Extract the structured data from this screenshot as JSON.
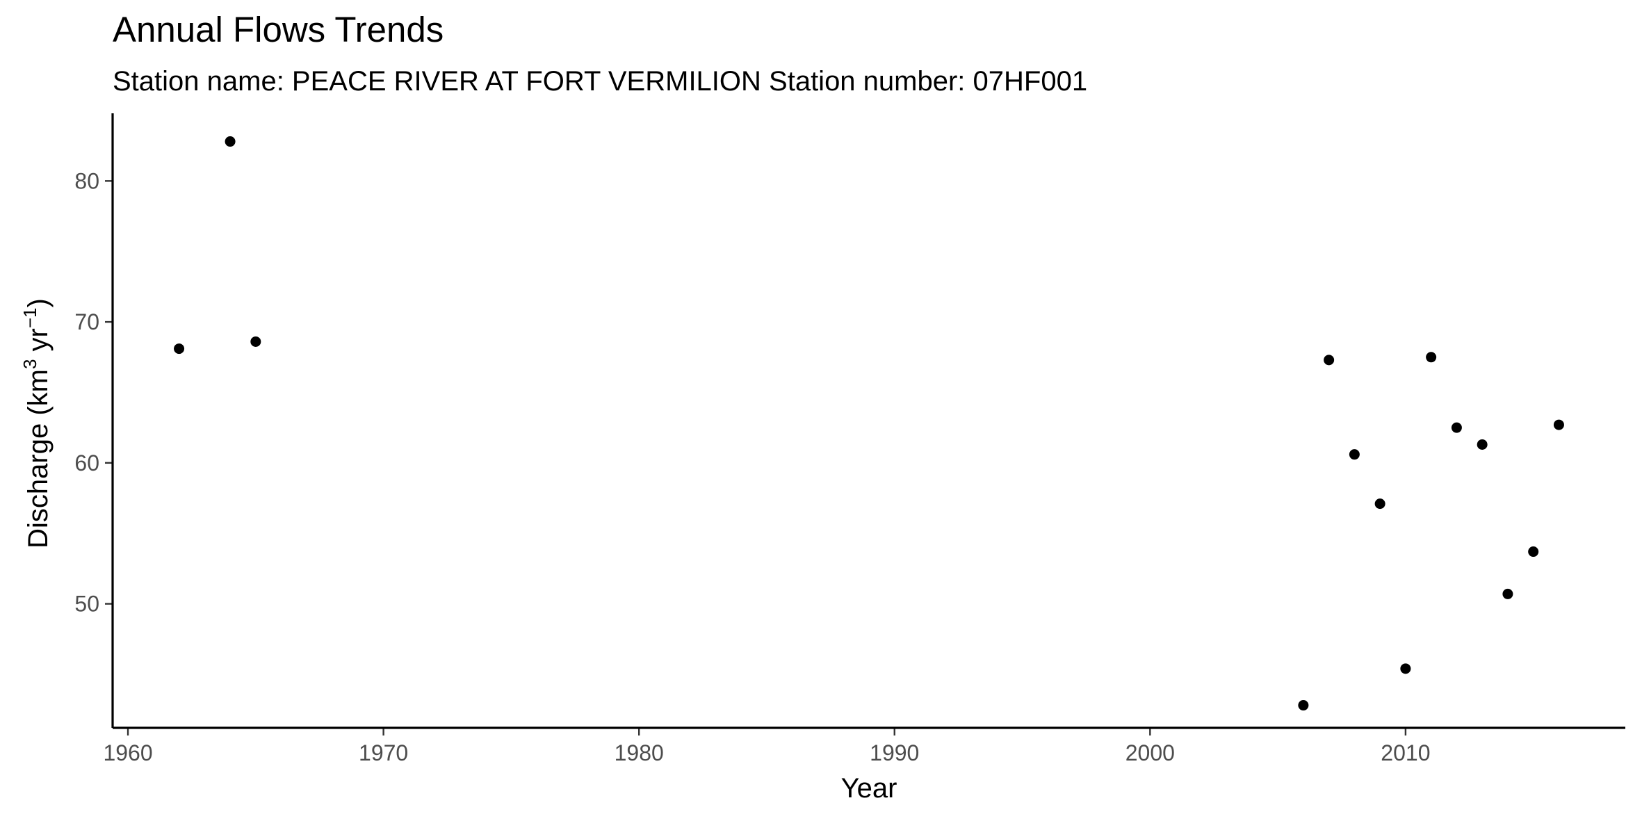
{
  "chart_data": {
    "type": "scatter",
    "title": "Annual Flows Trends",
    "subtitle": "Station name: PEACE RIVER AT FORT VERMILION Station number: 07HF001",
    "xlabel": "Year",
    "ylabel_parts": {
      "main": "Discharge (km",
      "sup1": "3",
      "mid": " yr",
      "sup2": "−1",
      "end": ")"
    },
    "xlim": [
      1959.4,
      2018.6
    ],
    "ylim": [
      41.2,
      84.8
    ],
    "x_ticks": [
      1960,
      1970,
      1980,
      1990,
      2000,
      2010
    ],
    "x_tick_labels": [
      "1960",
      "1970",
      "1980",
      "1990",
      "2000",
      "2010"
    ],
    "y_ticks": [
      50,
      60,
      70,
      80
    ],
    "y_tick_labels": [
      "50",
      "60",
      "70",
      "80"
    ],
    "grid": false,
    "legend": "none",
    "point_color": "#000000",
    "series": [
      {
        "x": [
          1962,
          1964,
          1965,
          2006,
          2007,
          2008,
          2009,
          2010,
          2011,
          2012,
          2013,
          2014,
          2015,
          2016
        ],
        "y": [
          68.1,
          82.8,
          68.6,
          42.8,
          67.3,
          60.6,
          57.1,
          45.4,
          67.5,
          62.5,
          61.3,
          50.7,
          53.7,
          62.7
        ]
      }
    ]
  }
}
